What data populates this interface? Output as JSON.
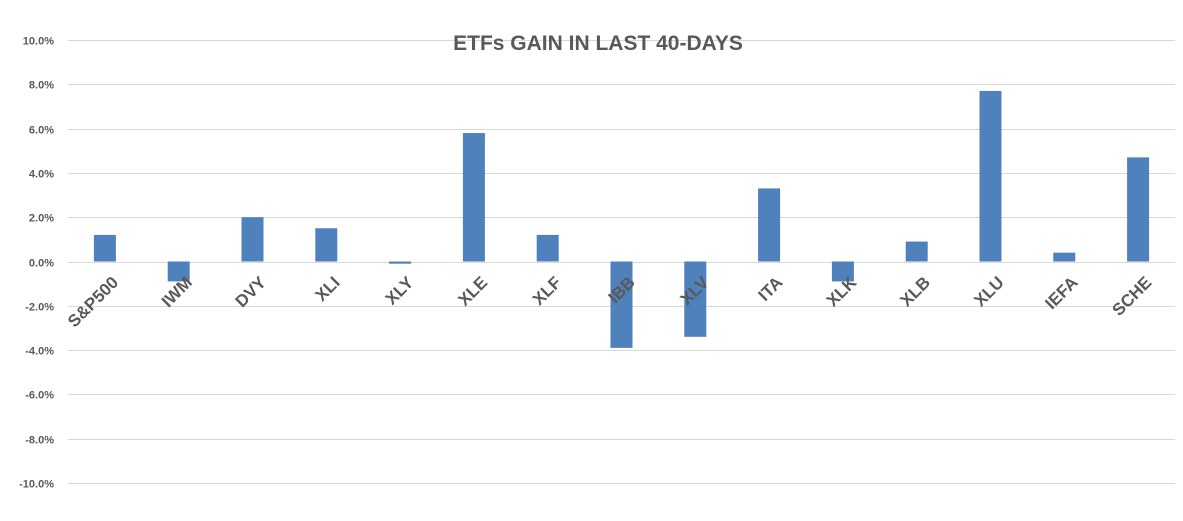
{
  "chart_data": {
    "type": "bar",
    "title": "ETFs GAIN IN LAST 40-DAYS",
    "xlabel": "",
    "ylabel": "",
    "categories": [
      "S&P500",
      "IWM",
      "DVY",
      "XLI",
      "XLY",
      "XLE",
      "XLF",
      "IBB",
      "XLV",
      "ITA",
      "XLK",
      "XLB",
      "XLU",
      "IEFA",
      "SCHE"
    ],
    "values": [
      1.2,
      -0.9,
      2.0,
      1.5,
      -0.1,
      5.8,
      1.2,
      -3.9,
      -3.4,
      3.3,
      -0.9,
      0.9,
      7.7,
      0.4,
      4.7
    ],
    "ylim": [
      -10,
      10
    ],
    "yticks": [
      "10.0%",
      "8.0%",
      "6.0%",
      "4.0%",
      "2.0%",
      "0.0%",
      "-2.0%",
      "-4.0%",
      "-6.0%",
      "-8.0%",
      "-10.0%"
    ],
    "ytick_values": [
      10,
      8,
      6,
      4,
      2,
      0,
      -2,
      -4,
      -6,
      -8,
      -10
    ],
    "grid": true,
    "legend": "none",
    "bar_color": "#4f81bd"
  }
}
